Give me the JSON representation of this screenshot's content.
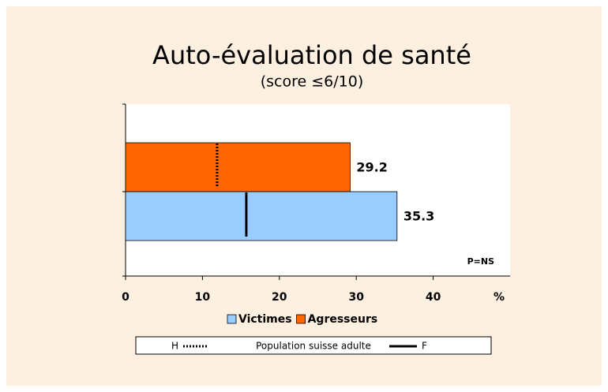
{
  "chart_data": {
    "type": "bar",
    "orientation": "horizontal",
    "title": "Auto-évaluation de santé",
    "subtitle": "(score ≤6/10)",
    "x_label": "%",
    "annotation": "P=NS",
    "series": [
      {
        "name": "Agresseurs",
        "color": "#ff6600",
        "values": [
          29.2
        ]
      },
      {
        "name": "Victimes",
        "color": "#99ccff",
        "values": [
          35.3
        ]
      }
    ],
    "references": [
      {
        "name": "H",
        "value": 11.9,
        "style": "dotted"
      },
      {
        "name": "F",
        "value": 15.7,
        "style": "solid"
      }
    ],
    "reference_legend_label": "Population suisse adulte",
    "xlim": [
      0,
      50
    ],
    "xticks": [
      0,
      10,
      20,
      30,
      40
    ]
  }
}
